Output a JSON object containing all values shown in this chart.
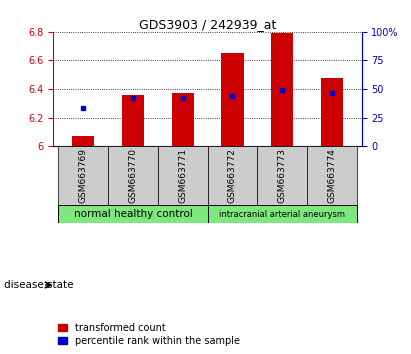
{
  "title": "GDS3903 / 242939_at",
  "samples": [
    "GSM663769",
    "GSM663770",
    "GSM663771",
    "GSM663772",
    "GSM663773",
    "GSM663774"
  ],
  "transformed_count": [
    6.07,
    6.36,
    6.37,
    6.65,
    6.79,
    6.48
  ],
  "percentile_y": [
    6.27,
    6.335,
    6.335,
    6.352,
    6.39,
    6.37
  ],
  "ylim": [
    6.0,
    6.8
  ],
  "yticks_left": [
    6.0,
    6.2,
    6.4,
    6.6,
    6.8
  ],
  "ytick_labels_left": [
    "6",
    "6.2",
    "6.4",
    "6.6",
    "6.8"
  ],
  "yticks_right": [
    0,
    25,
    50,
    75,
    100
  ],
  "ytick_labels_right": [
    "0",
    "25",
    "50",
    "75",
    "100%"
  ],
  "bar_color": "#cc0000",
  "percentile_color": "#0000cc",
  "group1_samples": [
    0,
    1,
    2
  ],
  "group2_samples": [
    3,
    4,
    5
  ],
  "group1_label": "normal healthy control",
  "group2_label": "intracranial arterial aneurysm",
  "group1_color": "#7de87d",
  "group2_color": "#7de87d",
  "disease_state_label": "disease state",
  "legend1_label": "transformed count",
  "legend2_label": "percentile rank within the sample",
  "bar_width": 0.45,
  "bar_bottom": 6.0,
  "left_axis_color": "#cc0000",
  "right_axis_color": "#0000bb",
  "xtick_bg_color": "#cccccc",
  "plot_bg_color": "#ffffff",
  "n_samples": 6
}
